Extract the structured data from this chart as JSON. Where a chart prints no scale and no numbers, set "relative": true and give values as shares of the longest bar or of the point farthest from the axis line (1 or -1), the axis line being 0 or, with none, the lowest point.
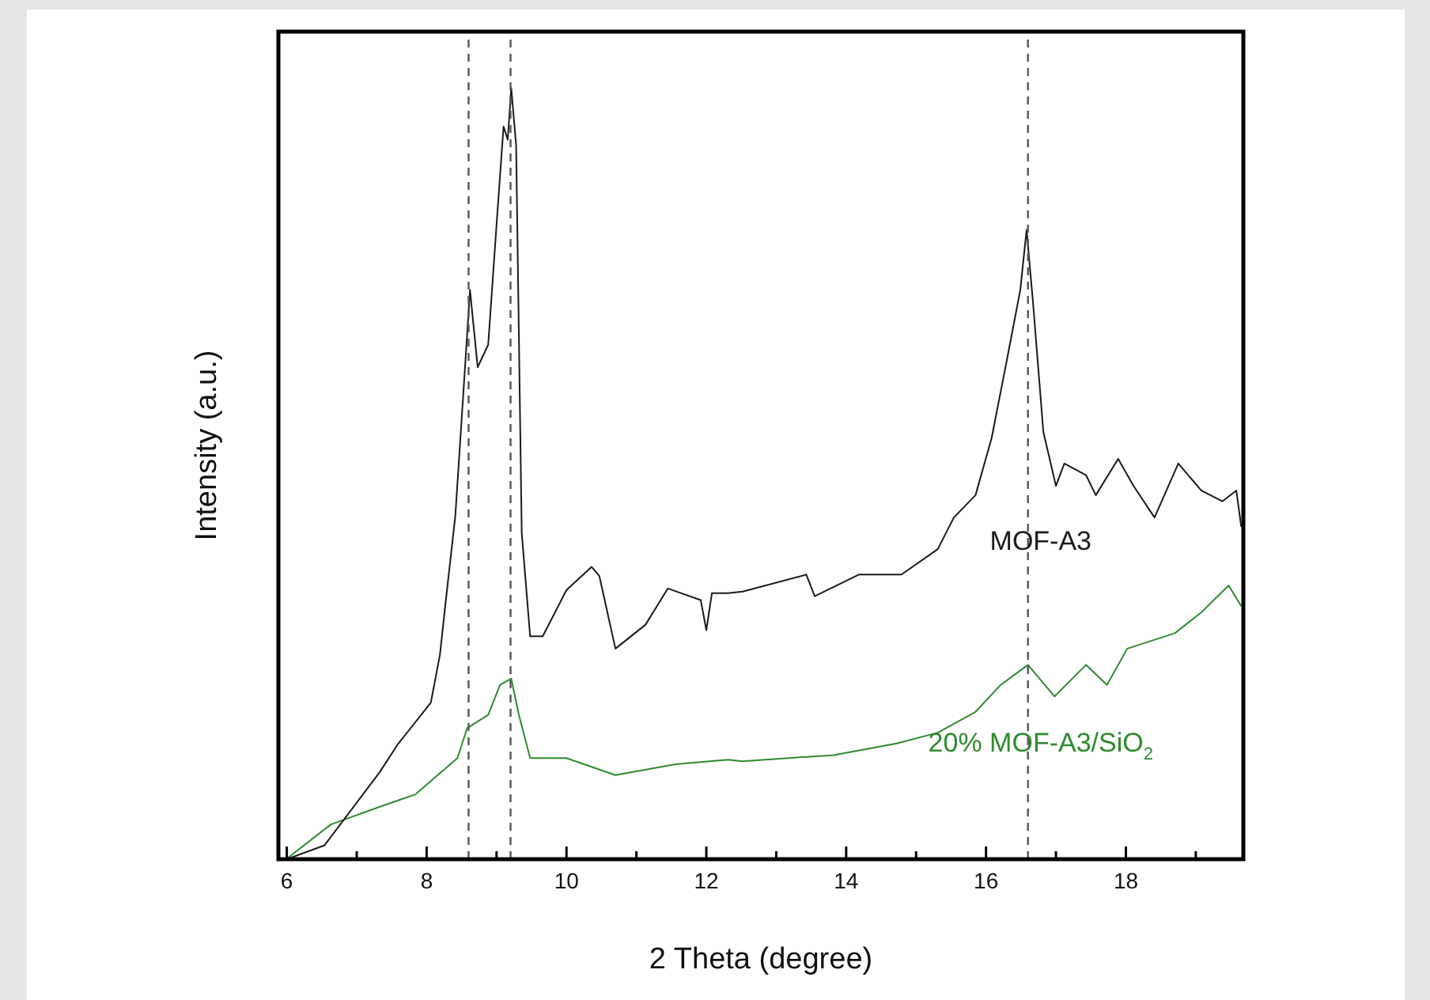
{
  "chart_data": {
    "type": "line",
    "xlabel": "2 Theta (degree)",
    "ylabel": "Intensity (a.u.)",
    "relative": true,
    "marker": "none",
    "line_style": "solid",
    "xlim": [
      5.88,
      19.68
    ],
    "xticks": [
      6,
      {
        "value": 7,
        "label": null
      },
      8,
      {
        "value": 9,
        "label": null
      },
      10,
      {
        "value": 11,
        "label": null
      },
      12,
      {
        "value": 13,
        "label": null
      },
      14,
      {
        "value": 15,
        "label": null
      },
      16,
      {
        "value": 17,
        "label": null
      },
      18,
      {
        "value": 19,
        "label": null
      }
    ],
    "ref_lines": [
      {
        "axis": "x",
        "value": 8.6,
        "color": "#555555",
        "line_style": "dashed"
      },
      {
        "axis": "x",
        "value": 9.2,
        "color": "#555555",
        "line_style": "dashed"
      },
      {
        "axis": "x",
        "value": 16.6,
        "color": "#555555",
        "line_style": "dashed"
      }
    ],
    "series": [
      {
        "name": "MOF-A3",
        "color": "#1a1a1a",
        "x": [
          6.0,
          6.54,
          7.33,
          7.58,
          8.06,
          8.19,
          8.28,
          8.41,
          8.53,
          8.62,
          8.73,
          8.88,
          9.0,
          9.1,
          9.16,
          9.21,
          9.28,
          9.36,
          9.48,
          9.66,
          10.0,
          10.36,
          10.47,
          10.7,
          11.13,
          11.45,
          11.92,
          12.0,
          12.08,
          12.31,
          12.52,
          13.43,
          13.55,
          14.18,
          14.79,
          15.31,
          15.54,
          15.85,
          16.08,
          16.3,
          16.49,
          16.58,
          16.67,
          16.82,
          17.0,
          17.12,
          17.43,
          17.57,
          17.89,
          18.11,
          18.41,
          18.75,
          19.08,
          19.38,
          19.58,
          19.65
        ],
        "values": [
          0,
          0.018,
          0.113,
          0.148,
          0.203,
          0.265,
          0.34,
          0.445,
          0.611,
          0.738,
          0.638,
          0.667,
          0.823,
          0.95,
          0.933,
          1,
          0.925,
          0.423,
          0.289,
          0.289,
          0.349,
          0.379,
          0.367,
          0.273,
          0.304,
          0.351,
          0.336,
          0.297,
          0.345,
          0.345,
          0.347,
          0.369,
          0.341,
          0.369,
          0.369,
          0.402,
          0.443,
          0.472,
          0.546,
          0.648,
          0.738,
          0.816,
          0.724,
          0.554,
          0.484,
          0.513,
          0.498,
          0.472,
          0.519,
          0.484,
          0.443,
          0.513,
          0.478,
          0.464,
          0.478,
          0.431
        ]
      },
      {
        "name": "20% MOF-A3/SiO$_{2}$",
        "color": "#2e8b2e",
        "x": [
          6.02,
          6.63,
          7.33,
          7.84,
          8.44,
          8.58,
          8.88,
          9.05,
          9.21,
          9.32,
          9.48,
          10.0,
          10.7,
          11.56,
          12.31,
          12.52,
          13.82,
          14.72,
          15.31,
          15.85,
          16.21,
          16.6,
          16.98,
          17.43,
          17.73,
          18.02,
          18.7,
          19.08,
          19.47,
          19.65
        ],
        "values": [
          0.002,
          0.045,
          0.068,
          0.084,
          0.131,
          0.17,
          0.187,
          0.226,
          0.234,
          0.187,
          0.131,
          0.131,
          0.109,
          0.123,
          0.129,
          0.127,
          0.135,
          0.15,
          0.164,
          0.191,
          0.226,
          0.252,
          0.211,
          0.252,
          0.226,
          0.273,
          0.293,
          0.32,
          0.355,
          0.328
        ]
      }
    ]
  }
}
